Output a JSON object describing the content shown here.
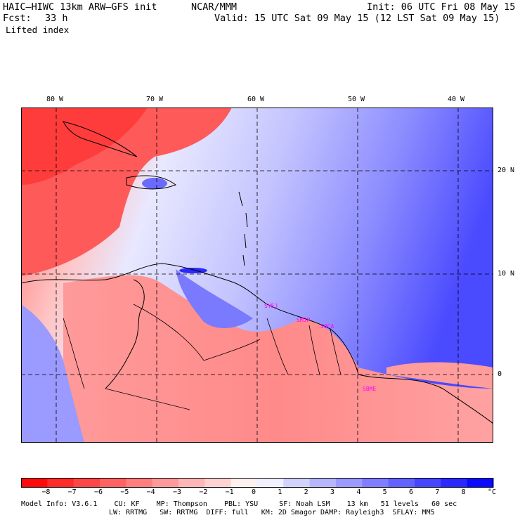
{
  "header": {
    "model": "HAIC–HIWC 13km ARW–GFS init",
    "org": "NCAR/MMM",
    "init": "Init: 06 UTC Fri 08 May 15",
    "fcst_label": "Fcst:",
    "fcst_value": "33 h",
    "valid": "Valid: 15 UTC Sat 09 May 15 (12 LST Sat 09 May 15)",
    "field": "Lifted index"
  },
  "map": {
    "lon_labels": [
      "80 W",
      "70 W",
      "60 W",
      "50 W",
      "40 W"
    ],
    "lat_labels": [
      "20 N",
      "10 N",
      "0"
    ],
    "stations": [
      "SYEJ",
      "SMJP",
      "SOCA",
      "SBME"
    ]
  },
  "colorbar": {
    "colors": [
      "#ff0a0a",
      "#ff2a2a",
      "#ff4646",
      "#ff6262",
      "#ff7e7e",
      "#ff9a9a",
      "#ffb6b6",
      "#ffd2d2",
      "#fff0f0",
      "#f0f0ff",
      "#d2d2ff",
      "#b6b6ff",
      "#9a9aff",
      "#7e7eff",
      "#6262ff",
      "#4646ff",
      "#2a2aff",
      "#0a0aff"
    ],
    "labels": [
      "−8",
      "−7",
      "−6",
      "−5",
      "−4",
      "−3",
      "−2",
      "−1",
      "0",
      "1",
      "2",
      "3",
      "4",
      "5",
      "6",
      "7",
      "8"
    ],
    "unit": "°C"
  },
  "footer": {
    "line1": "Model Info: V3.6.1    CU: KF    MP: Thompson    PBL: YSU     SF: Noah LSM    13 km   51 levels   60 sec",
    "line2": "LW: RRTMG   SW: RRTMG  DIFF: full   KM: 2D Smagor DAMP: Rayleigh3  SFLAY: MM5"
  }
}
